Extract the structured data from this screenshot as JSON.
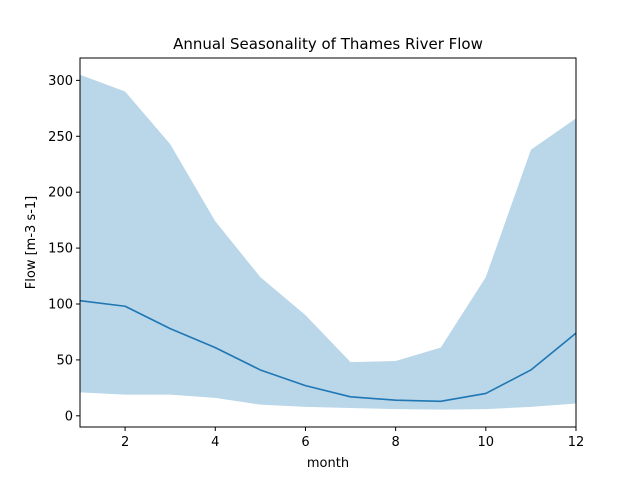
{
  "chart_data": {
    "type": "line",
    "title": "Annual Seasonality of Thames River Flow",
    "xlabel": "month",
    "ylabel": "Flow [m-3 s-1]",
    "xlim": [
      1,
      12
    ],
    "ylim": [
      -10,
      320
    ],
    "x_ticks": [
      2,
      4,
      6,
      8,
      10,
      12
    ],
    "y_ticks": [
      0,
      50,
      100,
      150,
      200,
      250,
      300
    ],
    "grid": false,
    "legend": "none",
    "x": [
      1,
      2,
      3,
      4,
      5,
      6,
      7,
      8,
      9,
      10,
      11,
      12
    ],
    "series": [
      {
        "values": [
          103,
          98,
          78,
          61,
          41,
          27,
          17,
          14,
          13,
          20,
          41,
          74
        ]
      }
    ],
    "band": {
      "upper": [
        305,
        290,
        243,
        174,
        124,
        90,
        48,
        49,
        61,
        124,
        238,
        266
      ],
      "lower": [
        21,
        19,
        19,
        16,
        10,
        8,
        7,
        6,
        5.5,
        6,
        8,
        11
      ]
    },
    "colors": {
      "line": "#1f77b4",
      "band": "#bad6e9"
    }
  }
}
